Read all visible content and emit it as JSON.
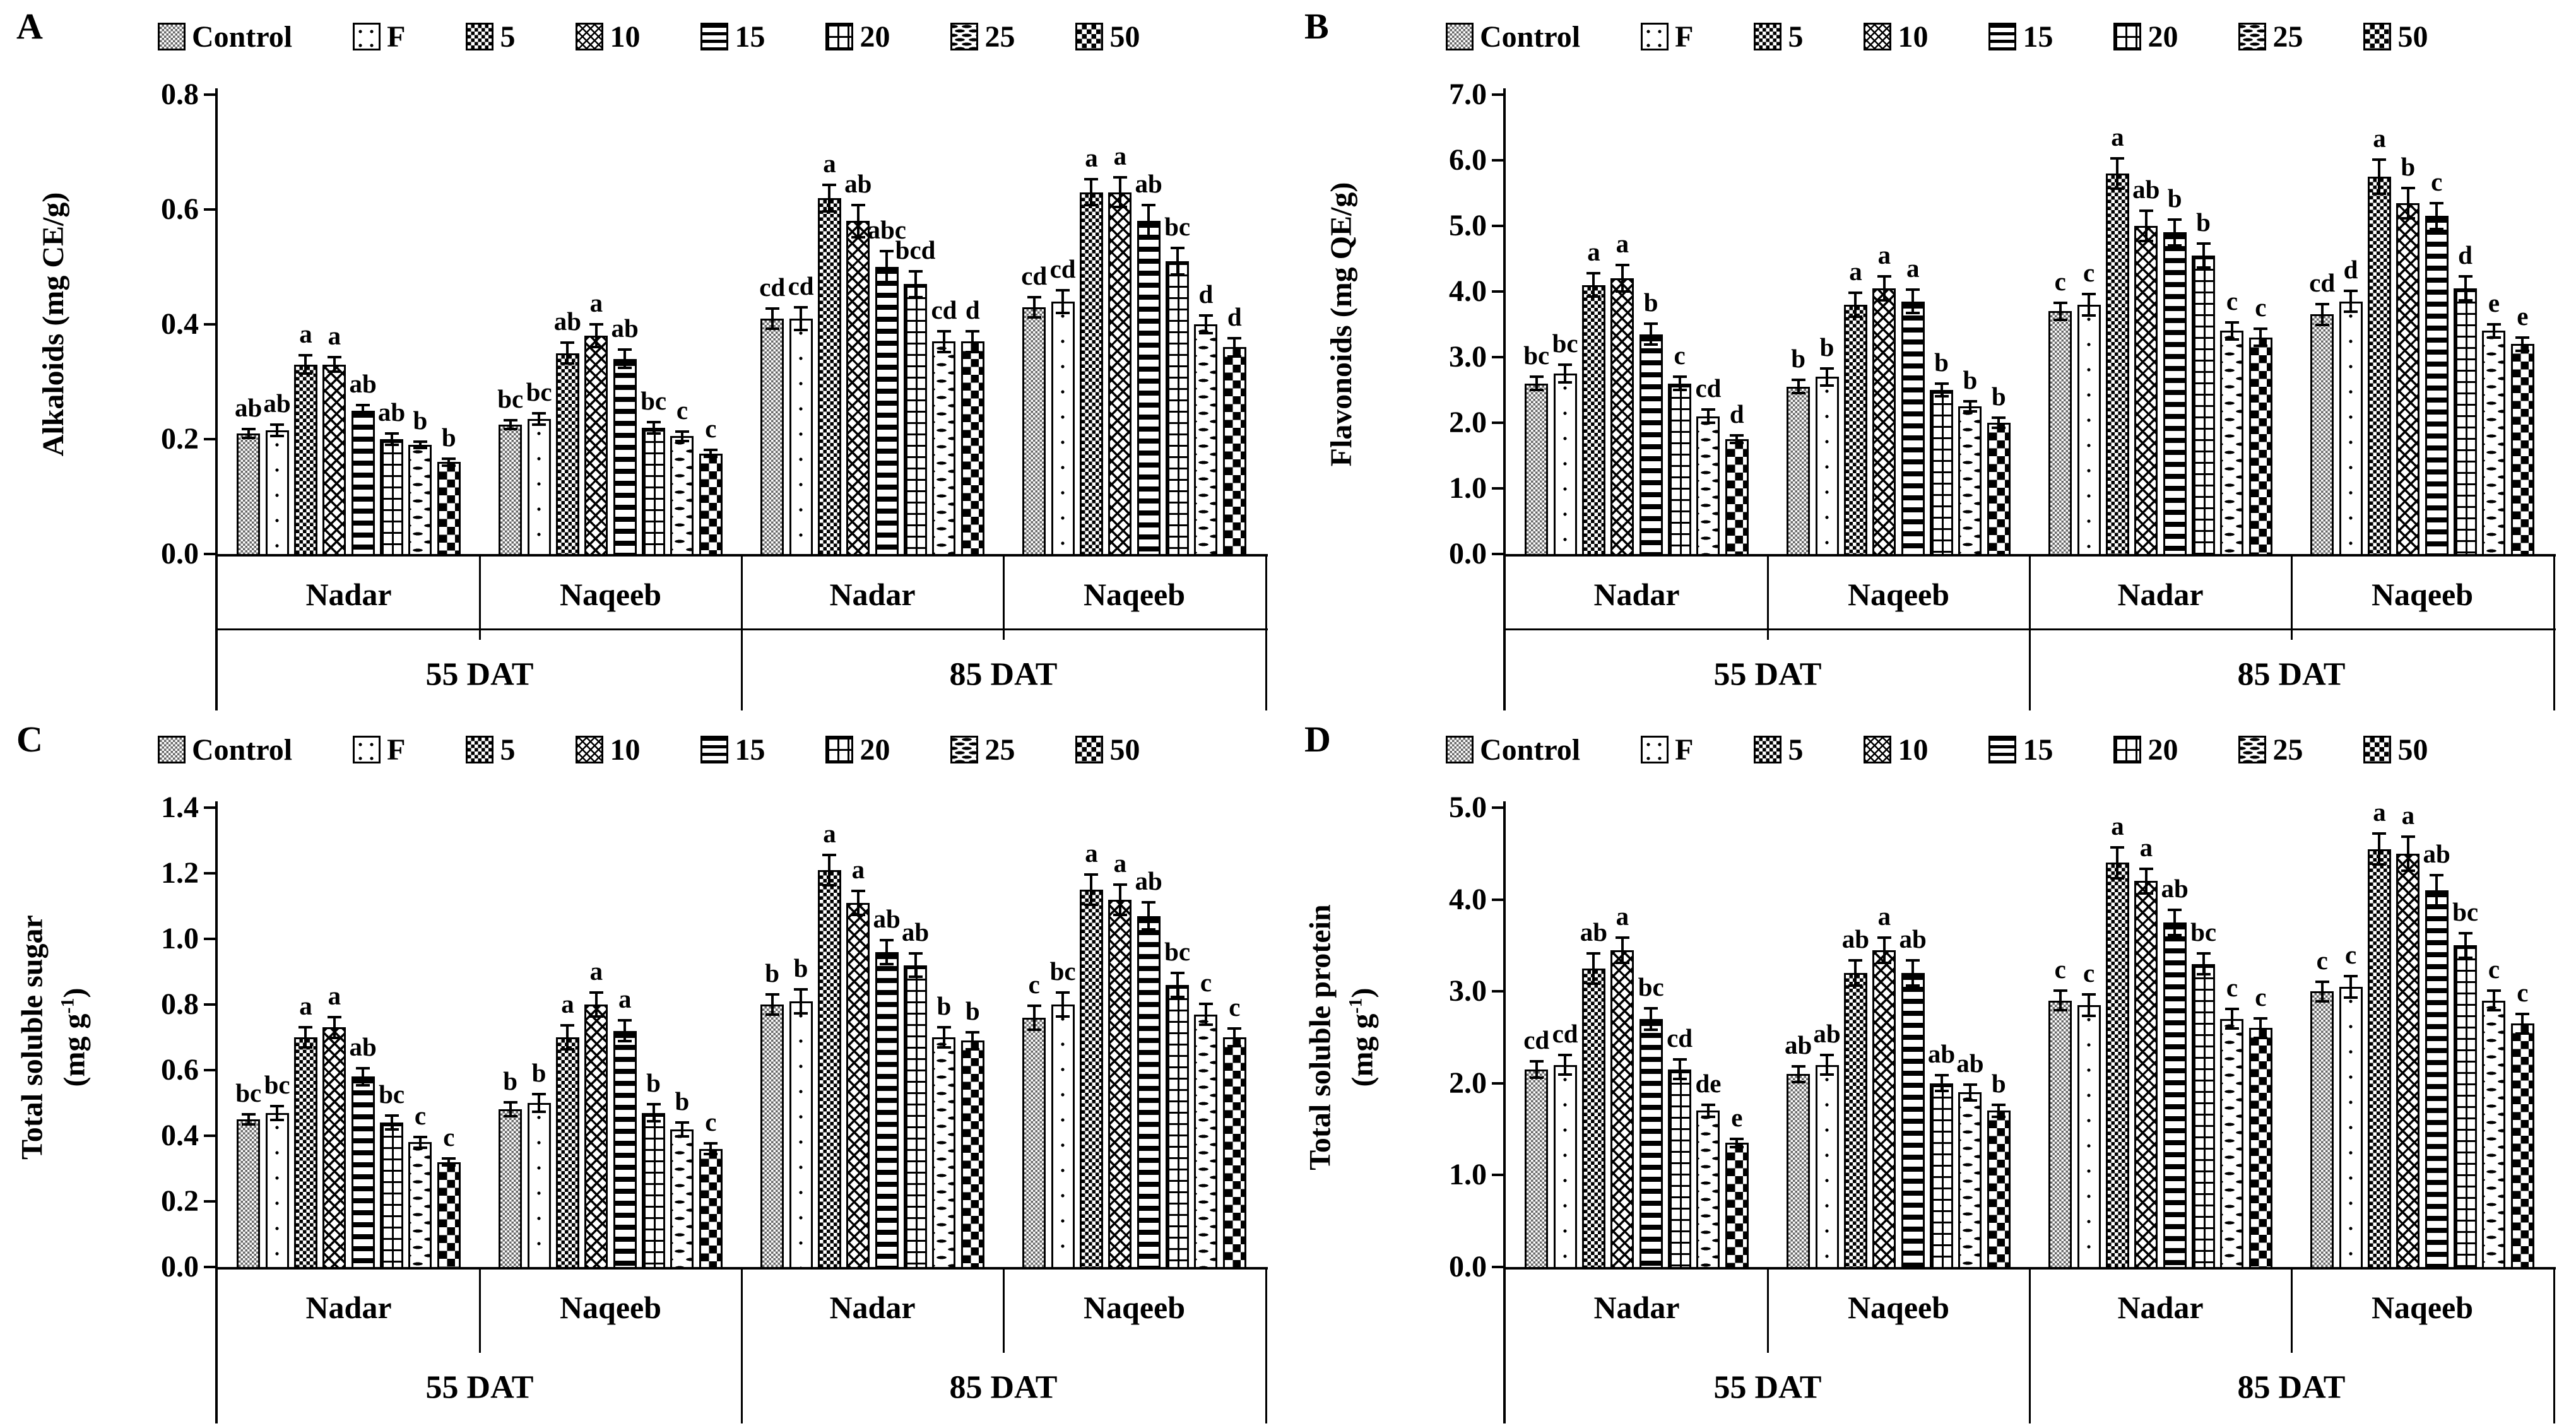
{
  "figure": {
    "background": "#ffffff",
    "ink_color": "#000000",
    "control_pattern_gray": "#666666"
  },
  "chart_data": {
    "type": "bar",
    "layout": "2x2 grouped bar panels with error bars and significance letters",
    "legend_position": "top of each panel",
    "grid": "off",
    "series": [
      {
        "label": "Control",
        "pattern": "control"
      },
      {
        "label": "F",
        "pattern": "f"
      },
      {
        "label": "5",
        "pattern": "n5"
      },
      {
        "label": "10",
        "pattern": "n10"
      },
      {
        "label": "15",
        "pattern": "n15"
      },
      {
        "label": "20",
        "pattern": "n20"
      },
      {
        "label": "25",
        "pattern": "n25"
      },
      {
        "label": "50",
        "pattern": "n50"
      }
    ],
    "cultivar_labels": [
      "Nadar",
      "Naqeeb"
    ],
    "time_labels": [
      "55 DAT",
      "85 DAT"
    ],
    "panels": [
      {
        "letter": "A",
        "ylabel_lines": [
          "Alkaloids (mg CE/g)"
        ],
        "ylim": [
          0,
          0.8
        ],
        "yticks": [
          0,
          0.2,
          0.4,
          0.6,
          0.8
        ],
        "tick_decimals": 1,
        "tier_divider": true,
        "groups": [
          {
            "time": "55 DAT",
            "cultivar": "Nadar",
            "values": [
              0.21,
              0.215,
              0.33,
              0.33,
              0.25,
              0.2,
              0.19,
              0.16
            ],
            "errors": [
              0.01,
              0.012,
              0.018,
              0.015,
              0.012,
              0.012,
              0.008,
              0.008
            ],
            "letters": [
              "ab",
              "ab",
              "a",
              "a",
              "ab",
              "ab",
              "b",
              "b"
            ]
          },
          {
            "time": "55 DAT",
            "cultivar": "Naqeeb",
            "values": [
              0.225,
              0.235,
              0.35,
              0.38,
              0.34,
              0.22,
              0.205,
              0.175
            ],
            "errors": [
              0.01,
              0.012,
              0.02,
              0.022,
              0.018,
              0.012,
              0.01,
              0.008
            ],
            "letters": [
              "bc",
              "bc",
              "ab",
              "a",
              "ab",
              "bc",
              "c",
              "c"
            ]
          },
          {
            "time": "85 DAT",
            "cultivar": "Nadar",
            "values": [
              0.41,
              0.41,
              0.62,
              0.58,
              0.5,
              0.47,
              0.37,
              0.37
            ],
            "errors": [
              0.02,
              0.022,
              0.025,
              0.03,
              0.03,
              0.025,
              0.02,
              0.02
            ],
            "letters": [
              "cd",
              "cd",
              "a",
              "ab",
              "abc",
              "bcd",
              "cd",
              "d"
            ]
          },
          {
            "time": "85 DAT",
            "cultivar": "Naqeeb",
            "values": [
              0.43,
              0.44,
              0.63,
              0.63,
              0.58,
              0.51,
              0.4,
              0.36
            ],
            "errors": [
              0.02,
              0.022,
              0.025,
              0.028,
              0.03,
              0.025,
              0.018,
              0.018
            ],
            "letters": [
              "cd",
              "cd",
              "a",
              "a",
              "ab",
              "bc",
              "d",
              "d"
            ]
          }
        ]
      },
      {
        "letter": "B",
        "ylabel_lines": [
          "Flavonoids (mg QE/g)"
        ],
        "ylim": [
          0,
          7
        ],
        "yticks": [
          0,
          1,
          2,
          3,
          4,
          5,
          6,
          7
        ],
        "tick_decimals": 1,
        "tier_divider": true,
        "groups": [
          {
            "time": "55 DAT",
            "cultivar": "Nadar",
            "values": [
              2.6,
              2.75,
              4.1,
              4.2,
              3.35,
              2.6,
              2.1,
              1.75
            ],
            "errors": [
              0.12,
              0.15,
              0.2,
              0.22,
              0.18,
              0.12,
              0.12,
              0.08
            ],
            "letters": [
              "bc",
              "bc",
              "a",
              "a",
              "b",
              "c",
              "cd",
              "d"
            ]
          },
          {
            "time": "55 DAT",
            "cultivar": "Naqeeb",
            "values": [
              2.55,
              2.7,
              3.8,
              4.05,
              3.85,
              2.5,
              2.25,
              2.0
            ],
            "errors": [
              0.12,
              0.15,
              0.2,
              0.2,
              0.2,
              0.12,
              0.1,
              0.1
            ],
            "letters": [
              "b",
              "b",
              "a",
              "a",
              "a",
              "b",
              "b",
              "b"
            ]
          },
          {
            "time": "85 DAT",
            "cultivar": "Nadar",
            "values": [
              3.7,
              3.8,
              5.8,
              5.0,
              4.9,
              4.55,
              3.4,
              3.3
            ],
            "errors": [
              0.15,
              0.18,
              0.25,
              0.25,
              0.22,
              0.2,
              0.15,
              0.15
            ],
            "letters": [
              "c",
              "c",
              "a",
              "ab",
              "b",
              "b",
              "c",
              "c"
            ]
          },
          {
            "time": "85 DAT",
            "cultivar": "Naqeeb",
            "values": [
              3.65,
              3.85,
              5.75,
              5.35,
              5.15,
              4.05,
              3.4,
              3.2
            ],
            "errors": [
              0.18,
              0.18,
              0.28,
              0.25,
              0.22,
              0.2,
              0.12,
              0.12
            ],
            "letters": [
              "cd",
              "d",
              "a",
              "b",
              "c",
              "d",
              "e",
              "e"
            ]
          }
        ]
      },
      {
        "letter": "C",
        "ylabel_lines": [
          "Total soluble sugar",
          "(mg g-1)"
        ],
        "ylim": [
          0,
          1.4
        ],
        "yticks": [
          0,
          0.2,
          0.4,
          0.6,
          0.8,
          1.0,
          1.2,
          1.4
        ],
        "tick_decimals": 1,
        "tier_divider": false,
        "groups": [
          {
            "time": "55 DAT",
            "cultivar": "Nadar",
            "values": [
              0.45,
              0.47,
              0.7,
              0.73,
              0.58,
              0.44,
              0.38,
              0.32
            ],
            "errors": [
              0.02,
              0.025,
              0.035,
              0.035,
              0.03,
              0.025,
              0.02,
              0.015
            ],
            "letters": [
              "bc",
              "bc",
              "a",
              "a",
              "ab",
              "bc",
              "c",
              "c"
            ]
          },
          {
            "time": "55 DAT",
            "cultivar": "Naqeeb",
            "values": [
              0.48,
              0.5,
              0.7,
              0.8,
              0.72,
              0.47,
              0.42,
              0.36
            ],
            "errors": [
              0.025,
              0.03,
              0.04,
              0.04,
              0.035,
              0.03,
              0.025,
              0.02
            ],
            "letters": [
              "b",
              "b",
              "a",
              "a",
              "a",
              "b",
              "b",
              "c"
            ]
          },
          {
            "time": "85 DAT",
            "cultivar": "Nadar",
            "values": [
              0.8,
              0.81,
              1.21,
              1.11,
              0.96,
              0.92,
              0.7,
              0.69
            ],
            "errors": [
              0.035,
              0.04,
              0.05,
              0.04,
              0.04,
              0.04,
              0.035,
              0.03
            ],
            "letters": [
              "b",
              "b",
              "a",
              "a",
              "ab",
              "ab",
              "b",
              "b"
            ]
          },
          {
            "time": "85 DAT",
            "cultivar": "Naqeeb",
            "values": [
              0.76,
              0.8,
              1.15,
              1.12,
              1.07,
              0.86,
              0.77,
              0.7
            ],
            "errors": [
              0.04,
              0.04,
              0.05,
              0.05,
              0.045,
              0.04,
              0.035,
              0.03
            ],
            "letters": [
              "c",
              "bc",
              "a",
              "a",
              "ab",
              "bc",
              "c",
              "c"
            ]
          }
        ]
      },
      {
        "letter": "D",
        "ylabel_lines": [
          "Total soluble protein",
          "(mg g-1)"
        ],
        "ylim": [
          0,
          5
        ],
        "yticks": [
          0,
          1,
          2,
          3,
          4,
          5
        ],
        "tick_decimals": 1,
        "tier_divider": false,
        "groups": [
          {
            "time": "55 DAT",
            "cultivar": "Nadar",
            "values": [
              2.15,
              2.2,
              3.25,
              3.45,
              2.7,
              2.15,
              1.7,
              1.35
            ],
            "errors": [
              0.1,
              0.12,
              0.18,
              0.15,
              0.13,
              0.12,
              0.08,
              0.06
            ],
            "letters": [
              "cd",
              "cd",
              "ab",
              "a",
              "bc",
              "cd",
              "de",
              "e"
            ]
          },
          {
            "time": "55 DAT",
            "cultivar": "Naqeeb",
            "values": [
              2.1,
              2.2,
              3.2,
              3.45,
              3.2,
              2.0,
              1.9,
              1.7
            ],
            "errors": [
              0.1,
              0.12,
              0.15,
              0.15,
              0.15,
              0.1,
              0.1,
              0.08
            ],
            "letters": [
              "ab",
              "ab",
              "ab",
              "a",
              "ab",
              "ab",
              "ab",
              "b"
            ]
          },
          {
            "time": "85 DAT",
            "cultivar": "Nadar",
            "values": [
              2.9,
              2.85,
              4.4,
              4.2,
              3.75,
              3.3,
              2.7,
              2.6
            ],
            "errors": [
              0.12,
              0.13,
              0.18,
              0.15,
              0.15,
              0.13,
              0.12,
              0.12
            ],
            "letters": [
              "c",
              "c",
              "a",
              "a",
              "ab",
              "bc",
              "c",
              "c"
            ]
          },
          {
            "time": "85 DAT",
            "cultivar": "Naqeeb",
            "values": [
              3.0,
              3.05,
              4.55,
              4.5,
              4.1,
              3.5,
              2.9,
              2.65
            ],
            "errors": [
              0.12,
              0.13,
              0.18,
              0.2,
              0.18,
              0.15,
              0.12,
              0.12
            ],
            "letters": [
              "c",
              "c",
              "a",
              "a",
              "ab",
              "bc",
              "c",
              "c"
            ]
          }
        ]
      }
    ]
  }
}
